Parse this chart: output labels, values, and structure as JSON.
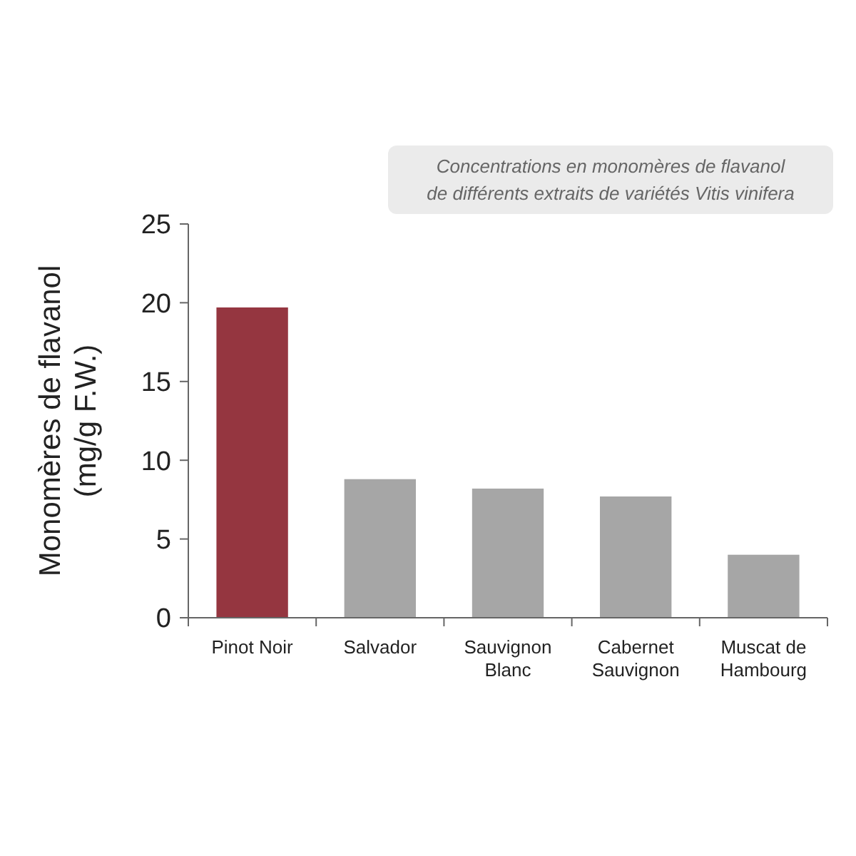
{
  "chart_data": {
    "type": "bar",
    "title": "Concentrations en monomères de flavanol\nde différents extraits de variétés Vitis vinifera",
    "ylabel": "Monomères de flavanol\n(mg/g F.W.)",
    "categories": [
      "Pinot Noir",
      "Salvador",
      "Sauvignon Blanc",
      "Cabernet Sauvignon",
      "Muscat de Hambourg"
    ],
    "values": [
      19.7,
      8.8,
      8.2,
      7.7,
      4.0
    ],
    "colors": [
      "#953640",
      "#a6a6a6",
      "#a6a6a6",
      "#a6a6a6",
      "#a6a6a6"
    ],
    "ylim": [
      0,
      25
    ],
    "yticks": [
      0,
      5,
      10,
      15,
      20,
      25
    ]
  }
}
